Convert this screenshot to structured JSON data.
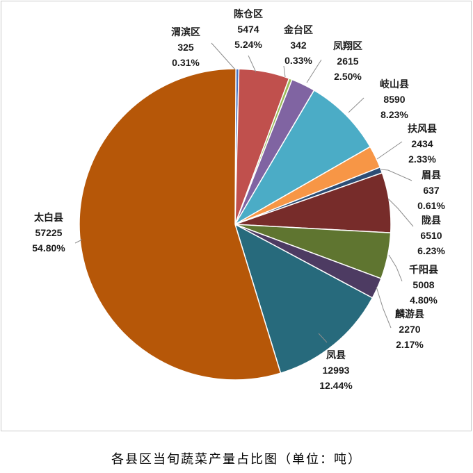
{
  "chart_data": {
    "type": "pie",
    "title": "各县区当旬蔬菜产量占比图（单位：吨）",
    "slices": [
      {
        "name": "渭滨区",
        "value": 325,
        "percent": "0.31%",
        "color": "#4472c4"
      },
      {
        "name": "陈仓区",
        "value": 5474,
        "percent": "5.24%",
        "color": "#c0504d"
      },
      {
        "name": "金台区",
        "value": 342,
        "percent": "0.33%",
        "color": "#9bbb59"
      },
      {
        "name": "凤翔区",
        "value": 2615,
        "percent": "2.50%",
        "color": "#8064a2"
      },
      {
        "name": "岐山县",
        "value": 8590,
        "percent": "8.23%",
        "color": "#4bacc6"
      },
      {
        "name": "扶风县",
        "value": 2434,
        "percent": "2.33%",
        "color": "#f79646"
      },
      {
        "name": "眉县",
        "value": 637,
        "percent": "0.61%",
        "color": "#2c4d75"
      },
      {
        "name": "陇县",
        "value": 6510,
        "percent": "6.23%",
        "color": "#772c2a"
      },
      {
        "name": "千阳县",
        "value": 5008,
        "percent": "4.80%",
        "color": "#5f7530"
      },
      {
        "name": "麟游县",
        "value": 2270,
        "percent": "2.17%",
        "color": "#4d3b62"
      },
      {
        "name": "凤县",
        "value": 12993,
        "percent": "12.44%",
        "color": "#276a7c"
      },
      {
        "name": "太白县",
        "value": 57225,
        "percent": "54.80%",
        "color": "#b65708"
      }
    ]
  }
}
